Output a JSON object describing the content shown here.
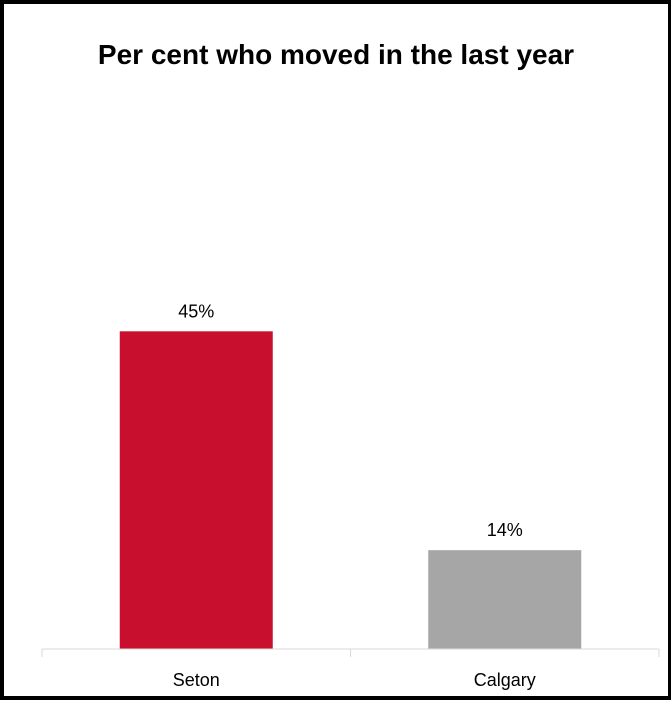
{
  "chart_data": {
    "type": "bar",
    "title": "Per cent who moved in the last year",
    "categories": [
      "Seton",
      "Calgary"
    ],
    "values": [
      45,
      14
    ],
    "data_labels": [
      "45%",
      "14%"
    ],
    "colors": [
      "#c8102e",
      "#a6a6a6"
    ],
    "xlabel": "",
    "ylabel": "",
    "ylim": [
      0,
      50
    ],
    "grid": false,
    "legend": "none"
  }
}
